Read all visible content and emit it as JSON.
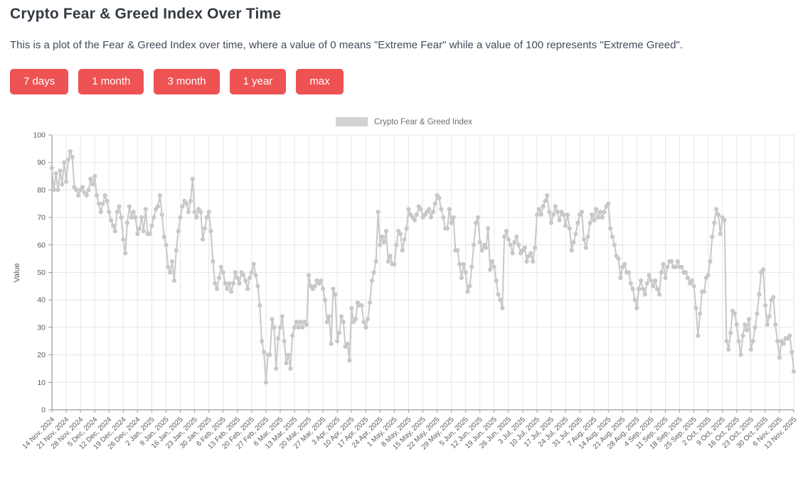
{
  "header": {
    "title": "Crypto Fear & Greed Index Over Time",
    "description": "This is a plot of the Fear & Greed Index over time, where a value of 0 means \"Extreme Fear\" while a value of 100 represents \"Extreme Greed\"."
  },
  "range_buttons": [
    "7 days",
    "1 month",
    "3 month",
    "1 year",
    "max"
  ],
  "legend": {
    "label": "Crypto Fear & Greed Index"
  },
  "colors": {
    "button_bg": "#ee5253",
    "button_text": "#ffffff",
    "line": "#c8c8c8",
    "legend_swatch": "#d2d2d2",
    "grid": "#e6e6e6",
    "axis": "#9a9a9a",
    "tick_text": "#5a5a5a"
  },
  "chart_data": {
    "type": "line",
    "title": "",
    "xlabel": "",
    "ylabel": "Value",
    "ylim": [
      0,
      100
    ],
    "grid": true,
    "legend_position": "top-center",
    "marker": "circle",
    "frequency": "daily",
    "start_date": "14 Nov, 2024",
    "end_date": "13 Nov, 2025",
    "y_ticks": [
      0,
      10,
      20,
      30,
      40,
      50,
      60,
      70,
      80,
      90,
      100
    ],
    "x_tick_labels": [
      "14 Nov, 2024",
      "21 Nov, 2024",
      "28 Nov, 2024",
      "5 Dec, 2024",
      "12 Dec, 2024",
      "19 Dec, 2024",
      "26 Dec, 2024",
      "2 Jan, 2025",
      "9 Jan, 2025",
      "16 Jan, 2025",
      "23 Jan, 2025",
      "30 Jan, 2025",
      "6 Feb, 2025",
      "13 Feb, 2025",
      "20 Feb, 2025",
      "27 Feb, 2025",
      "6 Mar, 2025",
      "13 Mar, 2025",
      "20 Mar, 2025",
      "27 Mar, 2025",
      "3 Apr, 2025",
      "10 Apr, 2025",
      "17 Apr, 2025",
      "24 Apr, 2025",
      "1 May, 2025",
      "8 May, 2025",
      "15 May, 2025",
      "22 May, 2025",
      "29 May, 2025",
      "5 Jun, 2025",
      "12 Jun, 2025",
      "19 Jun, 2025",
      "26 Jun, 2025",
      "3 Jul, 2025",
      "10 Jul, 2025",
      "17 Jul, 2025",
      "24 Jul, 2025",
      "31 Jul, 2025",
      "7 Aug, 2025",
      "14 Aug, 2025",
      "21 Aug, 2025",
      "28 Aug, 2025",
      "4 Sep, 2025",
      "11 Sep, 2025",
      "18 Sep, 2025",
      "25 Sep, 2025",
      "2 Oct, 2025",
      "9 Oct, 2025",
      "16 Oct, 2025",
      "23 Oct, 2025",
      "30 Oct, 2025",
      "6 Nov, 2025",
      "13 Nov, 2025"
    ],
    "series": [
      {
        "name": "Crypto Fear & Greed Index",
        "color": "#c8c8c8",
        "values": [
          88,
          80,
          86,
          80,
          87,
          82,
          90,
          83,
          91,
          94,
          92,
          81,
          80,
          78,
          80,
          81,
          79,
          78,
          80,
          84,
          82,
          85,
          78,
          75,
          72,
          75,
          78,
          76,
          72,
          69,
          67,
          65,
          72,
          74,
          70,
          62,
          57,
          68,
          74,
          70,
          72,
          70,
          64,
          66,
          70,
          65,
          73,
          64,
          64,
          67,
          70,
          73,
          74,
          78,
          71,
          63,
          60,
          52,
          50,
          54,
          47,
          58,
          65,
          70,
          74,
          76,
          75,
          72,
          76,
          84,
          72,
          70,
          73,
          72,
          62,
          66,
          70,
          72,
          65,
          54,
          46,
          44,
          48,
          52,
          50,
          46,
          44,
          46,
          43,
          46,
          50,
          48,
          46,
          50,
          49,
          47,
          44,
          48,
          50,
          53,
          49,
          45,
          38,
          25,
          21,
          10,
          20,
          20,
          33,
          30,
          15,
          26,
          30,
          34,
          25,
          17,
          20,
          15,
          27,
          30,
          32,
          30,
          32,
          30,
          32,
          31,
          49,
          45,
          44,
          45,
          47,
          46,
          47,
          44,
          40,
          32,
          34,
          24,
          44,
          42,
          25,
          28,
          34,
          32,
          23,
          24,
          18,
          37,
          32,
          33,
          39,
          38,
          38,
          32,
          30,
          33,
          39,
          47,
          50,
          54,
          72,
          60,
          63,
          61,
          65,
          54,
          56,
          53,
          53,
          60,
          65,
          64,
          58,
          62,
          66,
          73,
          71,
          70,
          69,
          71,
          74,
          73,
          70,
          71,
          72,
          73,
          70,
          72,
          75,
          78,
          77,
          73,
          70,
          66,
          66,
          73,
          68,
          70,
          58,
          58,
          53,
          48,
          53,
          50,
          43,
          45,
          52,
          60,
          68,
          70,
          61,
          58,
          60,
          59,
          66,
          51,
          54,
          52,
          47,
          42,
          40,
          37,
          63,
          65,
          62,
          60,
          57,
          61,
          63,
          60,
          57,
          58,
          59,
          54,
          56,
          57,
          54,
          59,
          71,
          73,
          71,
          74,
          76,
          78,
          72,
          68,
          71,
          74,
          72,
          69,
          72,
          71,
          67,
          71,
          66,
          58,
          61,
          64,
          68,
          71,
          72,
          62,
          59,
          63,
          68,
          71,
          69,
          73,
          70,
          72,
          70,
          72,
          74,
          75,
          66,
          63,
          60,
          56,
          55,
          48,
          52,
          53,
          50,
          50,
          46,
          44,
          40,
          37,
          44,
          47,
          44,
          42,
          46,
          49,
          47,
          45,
          47,
          44,
          42,
          50,
          53,
          48,
          52,
          54,
          54,
          52,
          52,
          54,
          52,
          52,
          50,
          50,
          48,
          46,
          47,
          45,
          37,
          27,
          35,
          43,
          43,
          48,
          49,
          54,
          63,
          68,
          73,
          71,
          64,
          70,
          69,
          25,
          22,
          28,
          36,
          35,
          31,
          25,
          20,
          27,
          31,
          29,
          33,
          22,
          25,
          30,
          35,
          42,
          50,
          51,
          38,
          31,
          34,
          40,
          41,
          31,
          25,
          19,
          25,
          24,
          26,
          26,
          27,
          21,
          14
        ]
      }
    ]
  }
}
